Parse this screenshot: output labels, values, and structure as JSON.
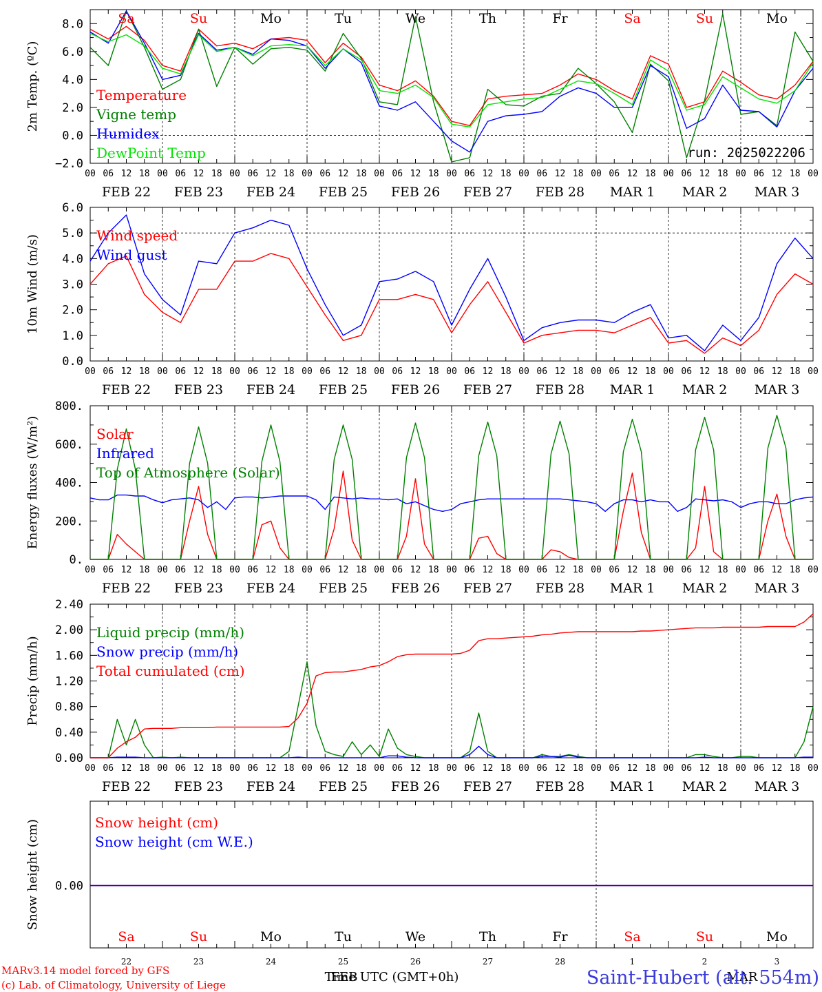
{
  "footer": {
    "model": "MARv3.14 model forced by GFS",
    "lab": "(c) Lab. of Climatology, University of Liege",
    "xlabel_a": "Time UTC (GMT+0h)",
    "xlabel_b": "FEB",
    "xlabel_c": "MAR",
    "station": "Saint-Hubert (alt. 554m)",
    "color_station": "#3b3bdc"
  },
  "axis": {
    "hour_ticks": [
      "00",
      "06",
      "12",
      "18"
    ],
    "end_tick": "00",
    "dates": [
      "FEB 22",
      "FEB 23",
      "FEB 24",
      "FEB 25",
      "FEB 26",
      "FEB 27",
      "FEB 28",
      "MAR  1",
      "MAR  2",
      "MAR  3"
    ],
    "weekdays": [
      "Sa",
      "Su",
      "Mo",
      "Tu",
      "We",
      "Th",
      "Fr",
      "Sa",
      "Su",
      "Mo"
    ],
    "weekday_colors": [
      "#ff0000",
      "#ff0000",
      "#000000",
      "#000000",
      "#000000",
      "#000000",
      "#000000",
      "#ff0000",
      "#ff0000",
      "#000000"
    ],
    "day_numbers": [
      "22",
      "23",
      "24",
      "25",
      "26",
      "27",
      "28",
      "1",
      "2",
      "3"
    ],
    "n_hours": 240
  },
  "chart_data": [
    {
      "type": "line",
      "ylabel": "2m Temp. (ºC)",
      "ylim": [
        -2,
        9
      ],
      "yticks": [
        -2,
        0,
        2,
        4,
        6,
        8
      ],
      "ytick_labels": [
        "−2.0",
        "0.0",
        "2.0",
        "4.0",
        "6.0",
        "8.0"
      ],
      "dashed_y": 0,
      "annotation": "run: 2025022206",
      "x_hours": [
        0,
        6,
        12,
        18,
        24,
        30,
        36,
        42,
        48,
        54,
        60,
        66,
        72,
        78,
        84,
        90,
        96,
        102,
        108,
        114,
        120,
        126,
        132,
        138,
        144,
        150,
        156,
        162,
        168,
        174,
        180,
        186,
        192,
        198,
        204,
        210,
        216,
        222,
        228,
        234,
        240
      ],
      "series": [
        {
          "name": "Temperature",
          "color": "#ff0000",
          "values": [
            7.6,
            6.9,
            7.8,
            6.8,
            5.0,
            4.6,
            7.6,
            6.4,
            6.6,
            6.2,
            6.9,
            7.0,
            6.8,
            5.2,
            6.6,
            5.6,
            3.6,
            3.2,
            3.9,
            2.8,
            1.0,
            0.7,
            2.6,
            2.8,
            2.9,
            3.0,
            3.6,
            4.4,
            4.0,
            3.2,
            2.6,
            5.7,
            5.1,
            2.0,
            2.4,
            4.6,
            3.8,
            2.9,
            2.6,
            3.6,
            5.3
          ]
        },
        {
          "name": "Vigne temp",
          "color": "#008000",
          "values": [
            6.3,
            5.0,
            8.9,
            6.3,
            3.3,
            4.0,
            7.6,
            3.5,
            6.3,
            5.1,
            6.2,
            6.3,
            6.1,
            4.6,
            7.3,
            5.5,
            2.4,
            2.2,
            8.5,
            2.4,
            -1.9,
            -1.6,
            3.3,
            2.2,
            2.1,
            2.8,
            3.0,
            4.8,
            3.7,
            2.4,
            0.2,
            5.1,
            3.9,
            -1.6,
            2.5,
            8.7,
            1.5,
            1.7,
            0.7,
            7.4,
            5.3
          ]
        },
        {
          "name": "Humidex",
          "color": "#0000ff",
          "values": [
            7.4,
            6.6,
            8.9,
            6.6,
            4.0,
            4.3,
            7.3,
            6.1,
            6.3,
            5.8,
            6.9,
            6.8,
            6.4,
            4.8,
            6.2,
            5.2,
            2.1,
            1.8,
            2.4,
            1.0,
            -0.4,
            -1.2,
            1.0,
            1.4,
            1.5,
            1.7,
            2.8,
            3.4,
            3.0,
            2.0,
            2.0,
            5.0,
            4.2,
            0.5,
            1.2,
            3.6,
            1.8,
            1.7,
            0.6,
            3.2,
            4.8
          ]
        },
        {
          "name": "DewPoint Temp",
          "color": "#00e400",
          "values": [
            7.3,
            6.7,
            7.2,
            6.4,
            4.8,
            4.4,
            7.2,
            6.0,
            6.3,
            5.7,
            6.4,
            6.5,
            6.4,
            5.0,
            6.2,
            5.4,
            3.2,
            3.0,
            3.6,
            2.7,
            0.8,
            0.6,
            2.2,
            2.4,
            2.6,
            2.7,
            3.3,
            3.9,
            3.7,
            3.0,
            2.2,
            5.4,
            4.6,
            1.8,
            2.2,
            4.2,
            3.4,
            2.6,
            2.3,
            3.2,
            5.2
          ]
        }
      ]
    },
    {
      "type": "line",
      "ylabel": "10m Wind (m/s)",
      "ylim": [
        0,
        6
      ],
      "yticks": [
        0,
        1,
        2,
        3,
        4,
        5,
        6
      ],
      "ytick_labels": [
        "0.0",
        "1.0",
        "2.0",
        "3.0",
        "4.0",
        "5.0",
        "6.0"
      ],
      "dashed_y": 5,
      "x_hours": [
        0,
        6,
        12,
        18,
        24,
        30,
        36,
        42,
        48,
        54,
        60,
        66,
        72,
        78,
        84,
        90,
        96,
        102,
        108,
        114,
        120,
        126,
        132,
        138,
        144,
        150,
        156,
        162,
        168,
        174,
        180,
        186,
        192,
        198,
        204,
        210,
        216,
        222,
        228,
        234,
        240
      ],
      "series": [
        {
          "name": "Wind speed",
          "color": "#ff0000",
          "values": [
            3.0,
            3.8,
            4.1,
            2.6,
            1.9,
            1.5,
            2.8,
            2.8,
            3.9,
            3.9,
            4.2,
            4.0,
            2.9,
            1.8,
            0.8,
            1.0,
            2.4,
            2.4,
            2.6,
            2.4,
            1.1,
            2.2,
            3.1,
            1.9,
            0.7,
            1.0,
            1.1,
            1.2,
            1.2,
            1.1,
            1.4,
            1.7,
            0.7,
            0.8,
            0.3,
            0.9,
            0.6,
            1.2,
            2.6,
            3.4,
            3.0
          ]
        },
        {
          "name": "Wind gust",
          "color": "#0000ff",
          "values": [
            3.9,
            5.0,
            5.7,
            3.4,
            2.4,
            1.8,
            3.9,
            3.8,
            5.0,
            5.2,
            5.5,
            5.3,
            3.6,
            2.2,
            1.0,
            1.4,
            3.1,
            3.2,
            3.5,
            3.1,
            1.4,
            2.8,
            4.0,
            2.5,
            0.8,
            1.3,
            1.5,
            1.6,
            1.6,
            1.5,
            1.9,
            2.2,
            0.9,
            1.0,
            0.4,
            1.4,
            0.8,
            1.7,
            3.8,
            4.8,
            4.0
          ]
        }
      ]
    },
    {
      "type": "line",
      "ylabel": "Energy fluxes (W/m²)",
      "ylim": [
        0,
        800
      ],
      "yticks": [
        0,
        200,
        400,
        600,
        800
      ],
      "ytick_labels": [
        "0.",
        "200.",
        "400.",
        "600.",
        "800."
      ],
      "x_hours": [
        0,
        3,
        6,
        9,
        12,
        15,
        18,
        21,
        24,
        27,
        30,
        33,
        36,
        39,
        42,
        45,
        48,
        51,
        54,
        57,
        60,
        63,
        66,
        69,
        72,
        75,
        78,
        81,
        84,
        87,
        90,
        93,
        96,
        99,
        102,
        105,
        108,
        111,
        114,
        117,
        120,
        123,
        126,
        129,
        132,
        135,
        138,
        141,
        144,
        147,
        150,
        153,
        156,
        159,
        162,
        165,
        168,
        171,
        174,
        177,
        180,
        183,
        186,
        189,
        192,
        195,
        198,
        201,
        204,
        207,
        210,
        213,
        216,
        219,
        222,
        225,
        228,
        231,
        234,
        237,
        240
      ],
      "series": [
        {
          "name": "Solar",
          "color": "#ff0000",
          "values": [
            0,
            0,
            0,
            130,
            80,
            40,
            0,
            0,
            0,
            0,
            0,
            200,
            380,
            130,
            0,
            0,
            0,
            0,
            0,
            180,
            200,
            60,
            0,
            0,
            0,
            0,
            0,
            160,
            460,
            100,
            0,
            0,
            0,
            0,
            0,
            120,
            420,
            80,
            0,
            0,
            0,
            0,
            0,
            110,
            120,
            30,
            0,
            0,
            0,
            0,
            0,
            50,
            40,
            10,
            0,
            0,
            0,
            0,
            0,
            250,
            450,
            140,
            0,
            0,
            0,
            0,
            0,
            60,
            380,
            40,
            0,
            0,
            0,
            0,
            0,
            200,
            340,
            120,
            0,
            0,
            0
          ]
        },
        {
          "name": "Infrared",
          "color": "#0000ff",
          "values": [
            320,
            310,
            310,
            335,
            335,
            330,
            330,
            310,
            295,
            310,
            315,
            320,
            310,
            270,
            300,
            260,
            320,
            325,
            325,
            320,
            325,
            330,
            330,
            330,
            330,
            310,
            260,
            325,
            320,
            315,
            320,
            315,
            315,
            310,
            315,
            290,
            300,
            280,
            260,
            250,
            260,
            290,
            300,
            310,
            315,
            315,
            315,
            315,
            315,
            315,
            315,
            315,
            315,
            310,
            305,
            300,
            290,
            250,
            290,
            310,
            310,
            300,
            310,
            300,
            300,
            250,
            270,
            315,
            310,
            305,
            310,
            300,
            270,
            290,
            300,
            300,
            290,
            290,
            310,
            320,
            325
          ]
        },
        {
          "name": "Top of Atmosphere (Solar)",
          "color": "#008000",
          "values": [
            0,
            0,
            0,
            470,
            680,
            470,
            0,
            0,
            0,
            0,
            0,
            500,
            690,
            500,
            0,
            0,
            0,
            0,
            0,
            510,
            700,
            510,
            0,
            0,
            0,
            0,
            0,
            520,
            700,
            520,
            0,
            0,
            0,
            0,
            0,
            530,
            710,
            530,
            0,
            0,
            0,
            0,
            0,
            540,
            715,
            540,
            0,
            0,
            0,
            0,
            0,
            550,
            720,
            550,
            0,
            0,
            0,
            0,
            0,
            560,
            730,
            560,
            0,
            0,
            0,
            0,
            0,
            570,
            740,
            570,
            0,
            0,
            0,
            0,
            0,
            580,
            750,
            580,
            0,
            0,
            0
          ]
        }
      ]
    },
    {
      "type": "line",
      "ylabel": "Precip (mm/h)",
      "ylim": [
        0,
        2.4
      ],
      "yticks": [
        0,
        0.4,
        0.8,
        1.2,
        1.6,
        2.0,
        2.4
      ],
      "ytick_labels": [
        "0.00",
        "0.40",
        "0.80",
        "1.20",
        "1.60",
        "2.00",
        "2.40"
      ],
      "x_hours": [
        0,
        3,
        6,
        9,
        12,
        15,
        18,
        21,
        24,
        27,
        30,
        33,
        36,
        39,
        42,
        45,
        48,
        51,
        54,
        57,
        60,
        63,
        66,
        69,
        72,
        75,
        78,
        81,
        84,
        87,
        90,
        93,
        96,
        99,
        102,
        105,
        108,
        111,
        114,
        117,
        120,
        123,
        126,
        129,
        132,
        135,
        138,
        141,
        144,
        147,
        150,
        153,
        156,
        159,
        162,
        165,
        168,
        171,
        174,
        177,
        180,
        183,
        186,
        189,
        192,
        195,
        198,
        201,
        204,
        207,
        210,
        213,
        216,
        219,
        222,
        225,
        228,
        231,
        234,
        237,
        240
      ],
      "series": [
        {
          "name": "Liquid precip (mm/h)",
          "color": "#008000",
          "values": [
            0,
            0,
            0,
            0.6,
            0.2,
            0.6,
            0.2,
            0,
            0.01,
            0,
            0.01,
            0,
            0,
            0,
            0,
            0,
            0,
            0,
            0,
            0,
            0,
            0,
            0.1,
            0.8,
            1.5,
            0.5,
            0.1,
            0.05,
            0.02,
            0.25,
            0.05,
            0.2,
            0.02,
            0.45,
            0.15,
            0.05,
            0.02,
            0,
            0,
            0,
            0,
            0,
            0.1,
            0.7,
            0.1,
            0,
            0,
            0,
            0,
            0,
            0.05,
            0.02,
            0.02,
            0.05,
            0.02,
            0,
            0,
            0,
            0,
            0,
            0,
            0,
            0,
            0,
            0,
            0,
            0,
            0.05,
            0.05,
            0.02,
            0,
            0,
            0.02,
            0.02,
            0,
            0,
            0,
            0,
            0,
            0.25,
            0.8
          ]
        },
        {
          "name": "Snow precip (mm/h)",
          "color": "#0000ff",
          "values": [
            0,
            0,
            0,
            0.01,
            0.01,
            0.01,
            0,
            0,
            0,
            0,
            0,
            0,
            0,
            0,
            0,
            0,
            0,
            0,
            0,
            0,
            0,
            0,
            0,
            0.01,
            0,
            0,
            0,
            0,
            0,
            0,
            0,
            0,
            0,
            0.03,
            0.03,
            0.01,
            0,
            0,
            0,
            0,
            0,
            0,
            0.05,
            0.18,
            0.05,
            0,
            0,
            0,
            0,
            0,
            0.02,
            0.02,
            0.01,
            0.04,
            0.01,
            0,
            0,
            0,
            0,
            0,
            0,
            0,
            0,
            0,
            0,
            0,
            0,
            0,
            0.01,
            0,
            0,
            0,
            0,
            0,
            0,
            0,
            0,
            0,
            0,
            0.01,
            0.01
          ]
        },
        {
          "name": "Total cumulated (cm)",
          "color": "#ff0000",
          "values": [
            0,
            0,
            0,
            0.15,
            0.25,
            0.32,
            0.45,
            0.46,
            0.46,
            0.46,
            0.47,
            0.47,
            0.47,
            0.47,
            0.48,
            0.48,
            0.48,
            0.48,
            0.48,
            0.48,
            0.48,
            0.48,
            0.49,
            0.62,
            0.85,
            1.28,
            1.33,
            1.34,
            1.34,
            1.36,
            1.38,
            1.42,
            1.44,
            1.5,
            1.58,
            1.61,
            1.62,
            1.62,
            1.62,
            1.62,
            1.62,
            1.63,
            1.68,
            1.83,
            1.86,
            1.86,
            1.87,
            1.88,
            1.89,
            1.9,
            1.92,
            1.93,
            1.95,
            1.96,
            1.97,
            1.97,
            1.97,
            1.97,
            1.97,
            1.97,
            1.97,
            1.98,
            1.98,
            1.99,
            2.0,
            2.01,
            2.02,
            2.03,
            2.03,
            2.03,
            2.04,
            2.04,
            2.04,
            2.04,
            2.04,
            2.05,
            2.05,
            2.05,
            2.05,
            2.12,
            2.25
          ]
        }
      ]
    },
    {
      "type": "line",
      "ylabel": "Snow height (cm)",
      "yticks": [
        0
      ],
      "ytick_labels": [
        "0.00"
      ],
      "x_hours": [
        0,
        240
      ],
      "series": [
        {
          "name": "Snow height (cm)",
          "color": "#ff0000",
          "values": [
            0,
            0
          ]
        },
        {
          "name": "Snow height (cm W.E.)",
          "color": "#0000ff",
          "values": [
            0,
            0
          ]
        }
      ]
    }
  ]
}
